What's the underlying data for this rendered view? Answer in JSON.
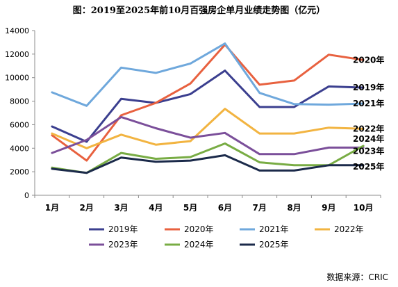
{
  "title": "图：2019至2025年前10月百强房企单月业绩走势图（亿元）",
  "source": "数据来源：CRIC",
  "chart_data": {
    "type": "line",
    "title": "图：2019至2025年前10月百强房企单月业绩走势图（亿元）",
    "xlabel": "",
    "ylabel": "",
    "categories": [
      "1月",
      "2月",
      "3月",
      "4月",
      "5月",
      "6月",
      "7月",
      "8月",
      "9月",
      "10月"
    ],
    "ylim": [
      0,
      14000
    ],
    "yticks": [
      0,
      2000,
      4000,
      6000,
      8000,
      10000,
      12000,
      14000
    ],
    "grid": false,
    "legend": "bottom",
    "series": [
      {
        "name": "2019年",
        "color": "#3B3F8F",
        "values": [
          5850,
          4550,
          8200,
          7850,
          8600,
          10600,
          7500,
          7500,
          9250,
          9150
        ],
        "end_label": "2019年"
      },
      {
        "name": "2020年",
        "color": "#E8613F",
        "values": [
          5100,
          2950,
          6800,
          7850,
          9500,
          12800,
          9400,
          9750,
          11950,
          11500
        ],
        "end_label": "2020年"
      },
      {
        "name": "2021年",
        "color": "#6FA8DC",
        "values": [
          8750,
          7600,
          10850,
          10400,
          11200,
          12900,
          8700,
          7750,
          7700,
          7800
        ],
        "end_label": "2021年"
      },
      {
        "name": "2022年",
        "color": "#F2B441",
        "values": [
          5250,
          4000,
          5150,
          4300,
          4600,
          7350,
          5250,
          5250,
          5750,
          5650
        ],
        "end_label": "2022年"
      },
      {
        "name": "2023年",
        "color": "#7B4F9A",
        "values": [
          3600,
          4700,
          6650,
          5700,
          4900,
          5300,
          3500,
          3500,
          4050,
          4050
        ],
        "end_label": "2023年"
      },
      {
        "name": "2024年",
        "color": "#78AC44",
        "values": [
          2350,
          1900,
          3600,
          3100,
          3250,
          4400,
          2800,
          2550,
          2550,
          4200
        ],
        "end_label": "2024年"
      },
      {
        "name": "2025年",
        "color": "#1B2A4A",
        "values": [
          2250,
          1900,
          3200,
          2850,
          2950,
          3400,
          2100,
          2100,
          2550,
          2550
        ],
        "end_label": "2025年"
      }
    ]
  }
}
